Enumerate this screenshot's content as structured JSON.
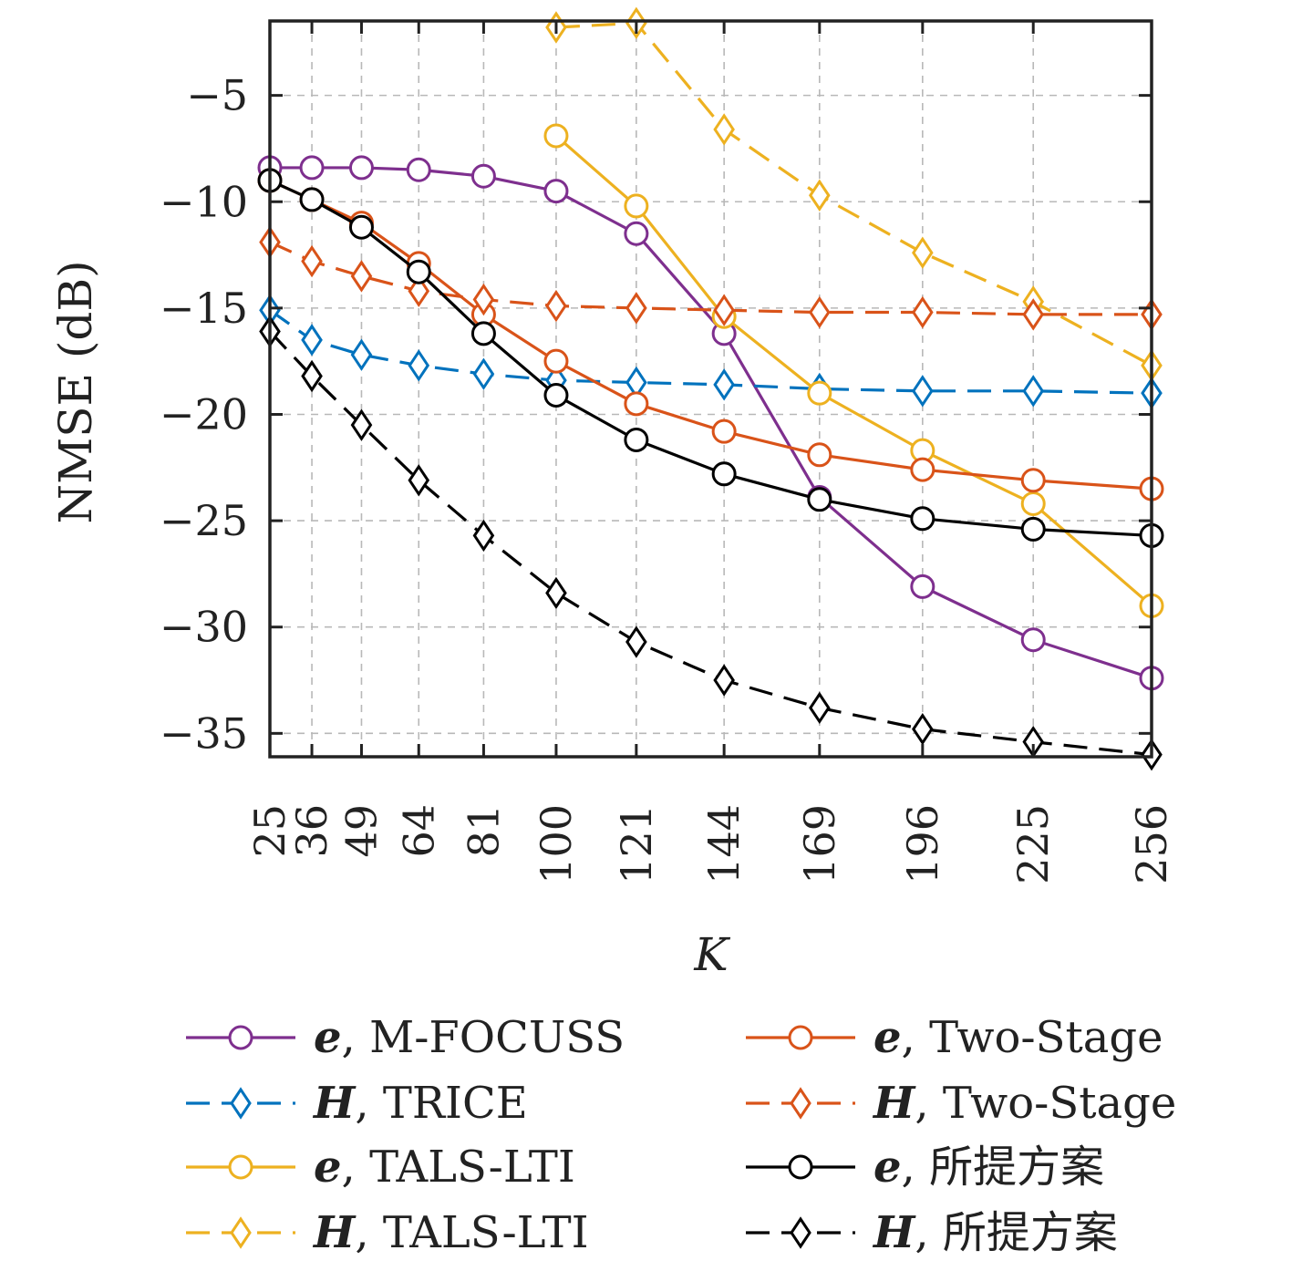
{
  "chart_data": {
    "type": "line",
    "xlabel": "K",
    "ylabel": "NMSE (dB)",
    "x": [
      25,
      36,
      49,
      64,
      81,
      100,
      121,
      144,
      169,
      196,
      225,
      256
    ],
    "x_tick_labels": [
      "25",
      "36",
      "49",
      "64",
      "81",
      "100",
      "121",
      "144",
      "169",
      "196",
      "225",
      "256"
    ],
    "y_ticks": [
      -5,
      -10,
      -15,
      -20,
      -25,
      -30,
      -35
    ],
    "y_tick_labels": [
      "−5",
      "−10",
      "−15",
      "−20",
      "−25",
      "−30",
      "−35"
    ],
    "xlim": [
      25,
      256
    ],
    "ylim": [
      -36.1,
      -1.5
    ],
    "grid": true,
    "legend_position": "bottom",
    "series": [
      {
        "name": "e, M-FOCUSS",
        "symbol": "e",
        "method": "M-FOCUSS",
        "color": "#7E2F8E",
        "marker": "circle",
        "dashed": false,
        "values": [
          -8.4,
          -8.4,
          -8.4,
          -8.5,
          -8.8,
          -9.5,
          -11.5,
          -16.2,
          -23.9,
          -28.1,
          -30.6,
          -32.4
        ]
      },
      {
        "name": "H, TRICE",
        "symbol": "H",
        "method": "TRICE",
        "color": "#0072BD",
        "marker": "diamond",
        "dashed": true,
        "values": [
          -15.1,
          -16.5,
          -17.2,
          -17.7,
          -18.1,
          -18.4,
          -18.5,
          -18.6,
          -18.8,
          -18.9,
          -18.9,
          -19.0
        ]
      },
      {
        "name": "e, TALS-LTI",
        "symbol": "e",
        "method": "TALS-LTI",
        "color": "#EDB120",
        "marker": "circle",
        "dashed": false,
        "values": [
          null,
          null,
          null,
          null,
          null,
          -6.9,
          -10.2,
          -15.4,
          -19.0,
          -21.7,
          -24.2,
          -29.0
        ]
      },
      {
        "name": "H, TALS-LTI",
        "symbol": "H",
        "method": "TALS-LTI",
        "color": "#EDB120",
        "marker": "diamond",
        "dashed": true,
        "values": [
          null,
          null,
          null,
          null,
          null,
          -1.8,
          -1.6,
          -6.6,
          -9.7,
          -12.4,
          -14.7,
          -17.7
        ]
      },
      {
        "name": "e, Two-Stage",
        "symbol": "e",
        "method": "Two-Stage",
        "color": "#D95319",
        "marker": "circle",
        "dashed": false,
        "values": [
          -9.0,
          -9.9,
          -11.0,
          -12.9,
          -15.3,
          -17.5,
          -19.5,
          -20.8,
          -21.9,
          -22.6,
          -23.1,
          -23.5
        ]
      },
      {
        "name": "H, Two-Stage",
        "symbol": "H",
        "method": "Two-Stage",
        "color": "#D95319",
        "marker": "diamond",
        "dashed": true,
        "values": [
          -11.9,
          -12.8,
          -13.5,
          -14.2,
          -14.6,
          -14.9,
          -15.0,
          -15.1,
          -15.2,
          -15.2,
          -15.3,
          -15.3
        ]
      },
      {
        "name": "e, 所提方案",
        "symbol": "e",
        "method": "所提方案",
        "color": "#000000",
        "marker": "circle",
        "dashed": false,
        "values": [
          -9.0,
          -9.9,
          -11.2,
          -13.3,
          -16.2,
          -19.1,
          -21.2,
          -22.8,
          -24.0,
          -24.9,
          -25.4,
          -25.7
        ]
      },
      {
        "name": "H, 所提方案",
        "symbol": "H",
        "method": "所提方案",
        "color": "#000000",
        "marker": "diamond",
        "dashed": true,
        "values": [
          -16.1,
          -18.2,
          -20.5,
          -23.1,
          -25.7,
          -28.4,
          -30.7,
          -32.5,
          -33.8,
          -34.8,
          -35.4,
          -36.0
        ]
      }
    ]
  }
}
